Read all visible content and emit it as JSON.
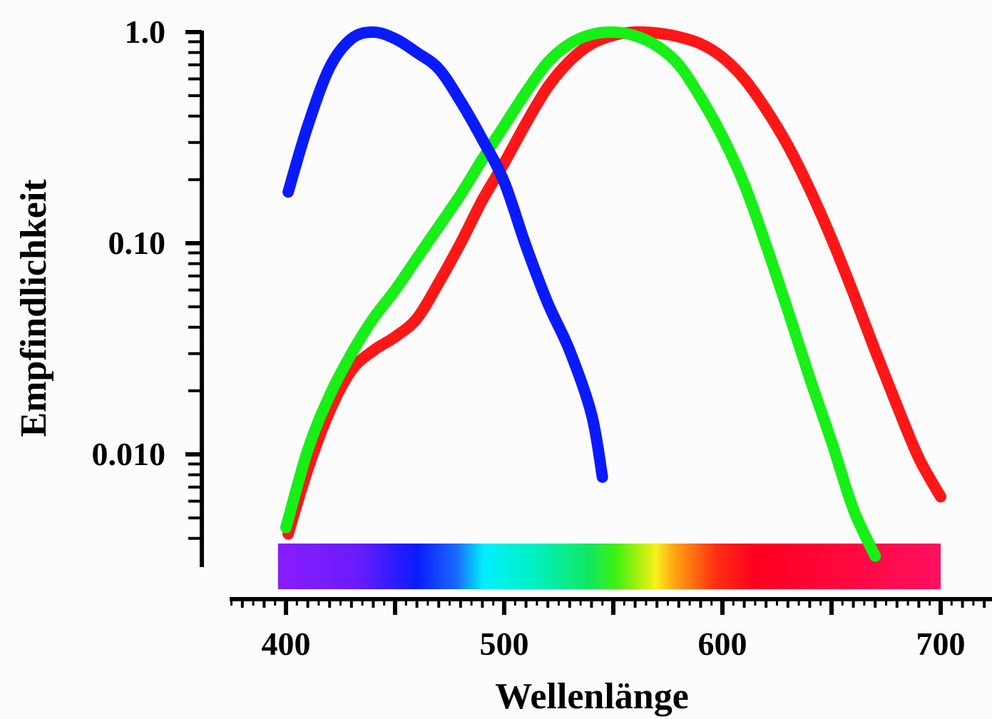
{
  "chart_data": {
    "type": "line",
    "title": "",
    "xlabel": "Wellenlänge",
    "ylabel": "Empfindlichkeit",
    "x_ticks": [
      400,
      500,
      600,
      700
    ],
    "x_tick_labels": [
      "400",
      "500",
      "600",
      "700"
    ],
    "xlim": [
      375,
      1391
    ],
    "y_scale": "log",
    "y_ticks": [
      0.01,
      0.1,
      1.0
    ],
    "y_tick_labels": [
      "0.010",
      "0.10",
      "1.0"
    ],
    "ylim": [
      0.0033,
      1.0
    ],
    "grid": false,
    "legend": "none",
    "spectrum_bar": {
      "x_range": [
        396,
        700
      ],
      "description": ""
    },
    "series": [
      {
        "color": "#0a1aff",
        "x": [
          401,
          410,
          420,
          430,
          440,
          450,
          460,
          470,
          480,
          490,
          500,
          510,
          520,
          530,
          540,
          545
        ],
        "y": [
          0.175,
          0.36,
          0.68,
          0.93,
          1.0,
          0.93,
          0.8,
          0.67,
          0.47,
          0.31,
          0.195,
          0.097,
          0.052,
          0.031,
          0.0155,
          0.0078
        ]
      },
      {
        "color": "#16f016",
        "x": [
          400,
          410,
          420,
          430,
          440,
          450,
          460,
          470,
          480,
          490,
          500,
          510,
          520,
          530,
          540,
          550,
          560,
          570,
          580,
          590,
          600,
          610,
          620,
          630,
          640,
          650,
          660,
          670
        ],
        "y": [
          0.0045,
          0.0105,
          0.019,
          0.03,
          0.044,
          0.06,
          0.085,
          0.12,
          0.17,
          0.25,
          0.36,
          0.52,
          0.72,
          0.88,
          0.975,
          1.0,
          0.96,
          0.86,
          0.7,
          0.49,
          0.32,
          0.19,
          0.098,
          0.048,
          0.023,
          0.0115,
          0.0055,
          0.0033
        ]
      },
      {
        "color": "#ff1616",
        "x": [
          401,
          410,
          420,
          430,
          440,
          450,
          460,
          470,
          480,
          490,
          500,
          510,
          520,
          530,
          540,
          550,
          560,
          570,
          580,
          590,
          600,
          610,
          620,
          630,
          640,
          650,
          660,
          670,
          680,
          690,
          700
        ],
        "y": [
          0.0042,
          0.0085,
          0.016,
          0.025,
          0.031,
          0.036,
          0.044,
          0.065,
          0.1,
          0.16,
          0.24,
          0.37,
          0.55,
          0.73,
          0.88,
          0.965,
          1.0,
          0.99,
          0.95,
          0.88,
          0.76,
          0.6,
          0.43,
          0.29,
          0.18,
          0.105,
          0.058,
          0.031,
          0.017,
          0.0096,
          0.0063
        ]
      }
    ]
  }
}
